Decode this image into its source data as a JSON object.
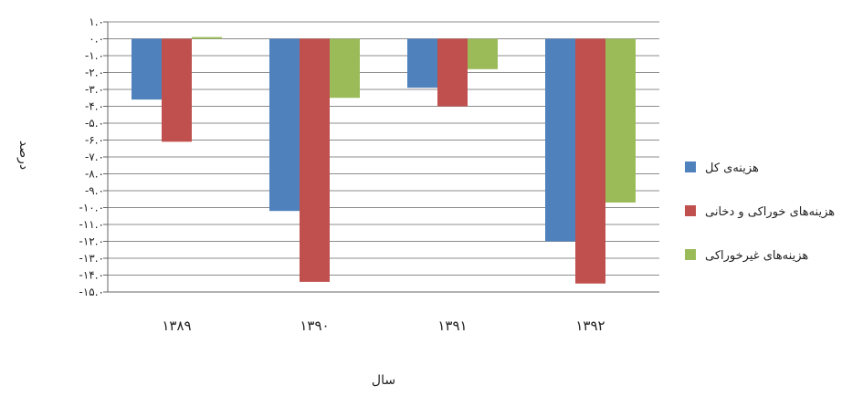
{
  "chart_data": {
    "type": "bar",
    "xlabel": "سال",
    "ylabel": "درصد",
    "categories": [
      "۱۳۸۹",
      "۱۳۹۰",
      "۱۳۹۱",
      "۱۳۹۲"
    ],
    "ylim": [
      -15,
      1
    ],
    "yticks": [
      1,
      0,
      -1,
      -2,
      -3,
      -4,
      -5,
      -6,
      -7,
      -8,
      -9,
      -10,
      -11,
      -12,
      -13,
      -14,
      -15
    ],
    "ytick_labels": [
      "۱.۰",
      "۰.۰",
      "-۱.۰",
      "-۲.۰",
      "-۳.۰",
      "-۴.۰",
      "-۵.۰",
      "-۶.۰",
      "-۷.۰",
      "-۸.۰",
      "-۹.۰",
      "-۱۰.۰",
      "-۱۱.۰",
      "-۱۲.۰",
      "-۱۳.۰",
      "-۱۴.۰",
      "-۱۵.۰"
    ],
    "grid": true,
    "legend_position": "right",
    "series": [
      {
        "name": "هزینه‌ی کل",
        "color": "#4F81BD",
        "values": [
          -3.6,
          -10.2,
          -2.9,
          -12.0
        ]
      },
      {
        "name": "هزینه‌های خوراکی و دخانی",
        "color": "#C0504D",
        "values": [
          -6.1,
          -14.4,
          -4.0,
          -14.5
        ]
      },
      {
        "name": "هزینه‌های غیرخوراکی",
        "color": "#9BBB59",
        "values": [
          0.1,
          -3.5,
          -1.8,
          -9.7
        ]
      }
    ]
  }
}
